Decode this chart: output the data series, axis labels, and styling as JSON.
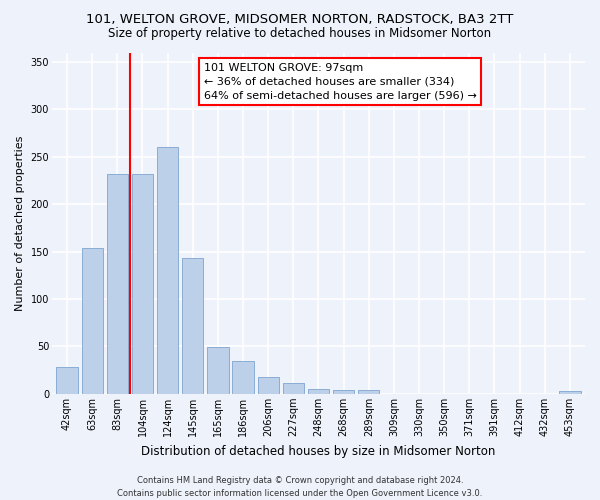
{
  "title_line1": "101, WELTON GROVE, MIDSOMER NORTON, RADSTOCK, BA3 2TT",
  "title_line2": "Size of property relative to detached houses in Midsomer Norton",
  "xlabel": "Distribution of detached houses by size in Midsomer Norton",
  "ylabel": "Number of detached properties",
  "bar_labels": [
    "42sqm",
    "63sqm",
    "83sqm",
    "104sqm",
    "124sqm",
    "145sqm",
    "165sqm",
    "186sqm",
    "206sqm",
    "227sqm",
    "248sqm",
    "268sqm",
    "289sqm",
    "309sqm",
    "330sqm",
    "350sqm",
    "371sqm",
    "391sqm",
    "412sqm",
    "432sqm",
    "453sqm"
  ],
  "bar_values": [
    28,
    154,
    232,
    232,
    260,
    143,
    49,
    35,
    18,
    11,
    5,
    4,
    4,
    0,
    0,
    0,
    0,
    0,
    0,
    0,
    3
  ],
  "bar_color": "#bdd0e9",
  "bar_edge_color": "#8aadd4",
  "vline_color": "red",
  "vline_pos": 2.5,
  "annotation_text": "101 WELTON GROVE: 97sqm\n← 36% of detached houses are smaller (334)\n64% of semi-detached houses are larger (596) →",
  "annotation_box_color": "white",
  "annotation_box_edge_color": "red",
  "ylim": [
    0,
    360
  ],
  "yticks": [
    0,
    50,
    100,
    150,
    200,
    250,
    300,
    350
  ],
  "footer_line1": "Contains HM Land Registry data © Crown copyright and database right 2024.",
  "footer_line2": "Contains public sector information licensed under the Open Government Licence v3.0.",
  "bg_color": "#eef2fb",
  "grid_color": "white",
  "title_fontsize": 9.5,
  "subtitle_fontsize": 8.5,
  "ylabel_fontsize": 8,
  "xlabel_fontsize": 8.5,
  "tick_fontsize": 7,
  "ann_fontsize": 8,
  "footer_fontsize": 6
}
